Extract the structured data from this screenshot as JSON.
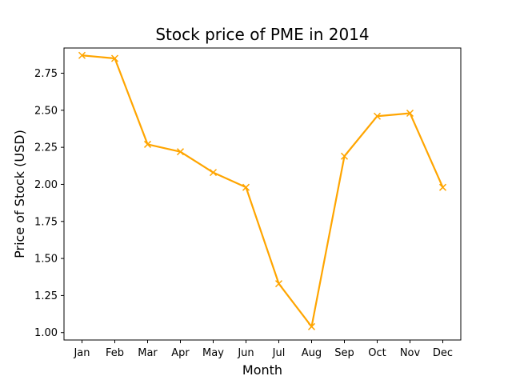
{
  "chart_data": {
    "type": "line",
    "title": "Stock price of PME in 2014",
    "xlabel": "Month",
    "ylabel": "Price of Stock (USD)",
    "categories": [
      "Jan",
      "Feb",
      "Mar",
      "Apr",
      "May",
      "Jun",
      "Jul",
      "Aug",
      "Sep",
      "Oct",
      "Nov",
      "Dec"
    ],
    "series": [
      {
        "values": [
          2.87,
          2.85,
          2.27,
          2.22,
          2.08,
          1.98,
          1.33,
          1.04,
          2.19,
          2.46,
          2.48,
          1.98
        ],
        "color": "#FFA500",
        "marker": "x"
      }
    ],
    "ylim": [
      0.95,
      2.92
    ],
    "yticks": [
      1.0,
      1.25,
      1.5,
      1.75,
      2.0,
      2.25,
      2.5,
      2.75
    ],
    "ytick_labels": [
      "1.00",
      "1.25",
      "1.50",
      "1.75",
      "2.00",
      "2.25",
      "2.50",
      "2.75"
    ],
    "grid": false,
    "legend": false
  }
}
